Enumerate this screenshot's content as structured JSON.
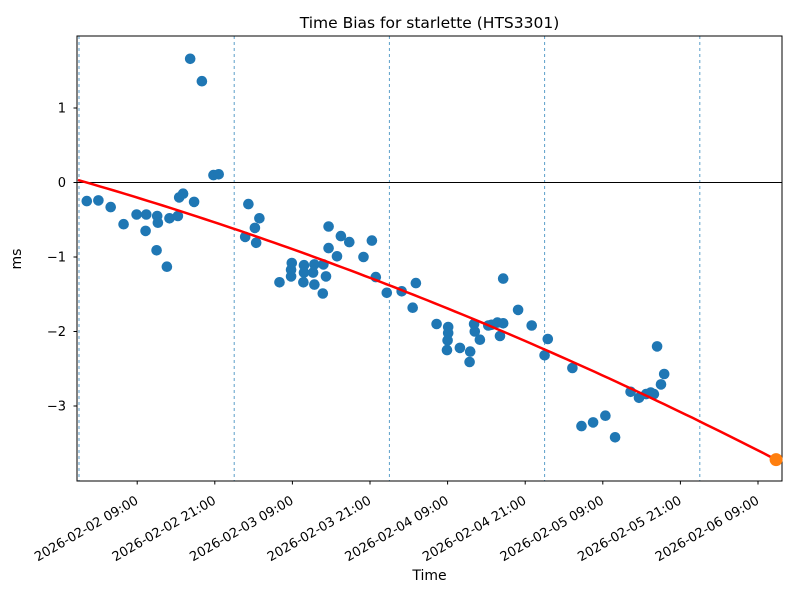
{
  "chart_data": {
    "type": "scatter",
    "title": "Time Bias for starlette (HTS3301)",
    "xlabel": "Time",
    "ylabel": "ms",
    "x_axis": {
      "unit": "hours since 2026-02-02 00:00",
      "range_hours": [
        -0.31,
        108.7
      ],
      "ticks": [
        {
          "t": 9,
          "label": "2026-02-02 09:00"
        },
        {
          "t": 21,
          "label": "2026-02-02 21:00"
        },
        {
          "t": 33,
          "label": "2026-02-03 09:00"
        },
        {
          "t": 45,
          "label": "2026-02-03 21:00"
        },
        {
          "t": 57,
          "label": "2026-02-04 09:00"
        },
        {
          "t": 69,
          "label": "2026-02-04 21:00"
        },
        {
          "t": 81,
          "label": "2026-02-05 09:00"
        },
        {
          "t": 93,
          "label": "2026-02-05 21:00"
        },
        {
          "t": 105,
          "label": "2026-02-06 09:00"
        }
      ],
      "day_boundary_lines_t": [
        0,
        24,
        48,
        72,
        96
      ]
    },
    "y_axis": {
      "range": [
        -4.0,
        1.97
      ],
      "ticks": [
        {
          "value": 1,
          "label": "1"
        },
        {
          "value": 0,
          "label": "0"
        },
        {
          "value": -1,
          "label": "−1"
        },
        {
          "value": -2,
          "label": "−2"
        },
        {
          "value": -3,
          "label": "−3"
        }
      ],
      "zero_line": 0
    },
    "colors": {
      "observation": "#1f77b4",
      "trend": "#ff0000",
      "prediction": "#ff7f0e",
      "day_line": "#5b9ec9",
      "axis": "#000000"
    },
    "series": [
      {
        "name": "observations",
        "type": "scatter",
        "color_key": "observation",
        "points": [
          [
            1.2,
            -0.25
          ],
          [
            3.0,
            -0.24
          ],
          [
            4.9,
            -0.33
          ],
          [
            6.9,
            -0.56
          ],
          [
            8.9,
            -0.43
          ],
          [
            10.3,
            -0.65
          ],
          [
            10.4,
            -0.43
          ],
          [
            12.0,
            -0.91
          ],
          [
            12.1,
            -0.45
          ],
          [
            12.2,
            -0.54
          ],
          [
            13.6,
            -1.13
          ],
          [
            14.0,
            -0.48
          ],
          [
            15.3,
            -0.45
          ],
          [
            15.5,
            -0.2
          ],
          [
            16.1,
            -0.15
          ],
          [
            17.2,
            1.66
          ],
          [
            17.8,
            -0.26
          ],
          [
            19.0,
            1.36
          ],
          [
            20.8,
            0.1
          ],
          [
            21.6,
            0.11
          ],
          [
            25.7,
            -0.73
          ],
          [
            26.2,
            -0.29
          ],
          [
            27.2,
            -0.61
          ],
          [
            27.4,
            -0.81
          ],
          [
            27.9,
            -0.48
          ],
          [
            31.0,
            -1.34
          ],
          [
            32.8,
            -1.17
          ],
          [
            32.8,
            -1.26
          ],
          [
            32.9,
            -1.08
          ],
          [
            34.7,
            -1.34
          ],
          [
            34.8,
            -1.11
          ],
          [
            34.8,
            -1.21
          ],
          [
            36.2,
            -1.21
          ],
          [
            36.4,
            -1.1
          ],
          [
            36.4,
            -1.37
          ],
          [
            37.7,
            -1.49
          ],
          [
            37.8,
            -1.1
          ],
          [
            38.2,
            -1.26
          ],
          [
            38.6,
            -0.59
          ],
          [
            38.6,
            -0.88
          ],
          [
            39.9,
            -0.99
          ],
          [
            40.5,
            -0.72
          ],
          [
            41.8,
            -0.8
          ],
          [
            44.0,
            -1.0
          ],
          [
            45.3,
            -0.78
          ],
          [
            45.9,
            -1.27
          ],
          [
            47.6,
            -1.48
          ],
          [
            49.9,
            -1.46
          ],
          [
            51.6,
            -1.68
          ],
          [
            52.1,
            -1.35
          ],
          [
            55.3,
            -1.9
          ],
          [
            56.9,
            -2.25
          ],
          [
            57.0,
            -2.12
          ],
          [
            57.1,
            -1.94
          ],
          [
            57.1,
            -2.02
          ],
          [
            58.9,
            -2.22
          ],
          [
            60.4,
            -2.41
          ],
          [
            60.5,
            -2.27
          ],
          [
            61.1,
            -1.9
          ],
          [
            61.2,
            -2.0
          ],
          [
            62.0,
            -2.11
          ],
          [
            63.3,
            -1.92
          ],
          [
            63.8,
            -1.91
          ],
          [
            64.7,
            -1.88
          ],
          [
            65.1,
            -2.06
          ],
          [
            65.6,
            -1.89
          ],
          [
            65.6,
            -1.29
          ],
          [
            67.9,
            -1.71
          ],
          [
            70.0,
            -1.92
          ],
          [
            72.0,
            -2.32
          ],
          [
            72.5,
            -2.1
          ],
          [
            76.3,
            -2.49
          ],
          [
            77.7,
            -3.27
          ],
          [
            79.5,
            -3.22
          ],
          [
            81.4,
            -3.13
          ],
          [
            82.9,
            -3.42
          ],
          [
            85.3,
            -2.81
          ],
          [
            86.6,
            -2.89
          ],
          [
            87.7,
            -2.84
          ],
          [
            88.4,
            -2.82
          ],
          [
            88.9,
            -2.84
          ],
          [
            89.4,
            -2.2
          ],
          [
            90.0,
            -2.71
          ],
          [
            90.5,
            -2.57
          ]
        ]
      },
      {
        "name": "trend-fit",
        "type": "quadratic",
        "color_key": "trend",
        "coeffs": {
          "a": 0.03,
          "b": -0.025031,
          "c": -9.05e-05
        },
        "t_range": [
          0,
          107.8
        ]
      },
      {
        "name": "prediction",
        "type": "scatter",
        "color_key": "prediction",
        "points": [
          [
            107.8,
            -3.72
          ]
        ]
      }
    ]
  }
}
